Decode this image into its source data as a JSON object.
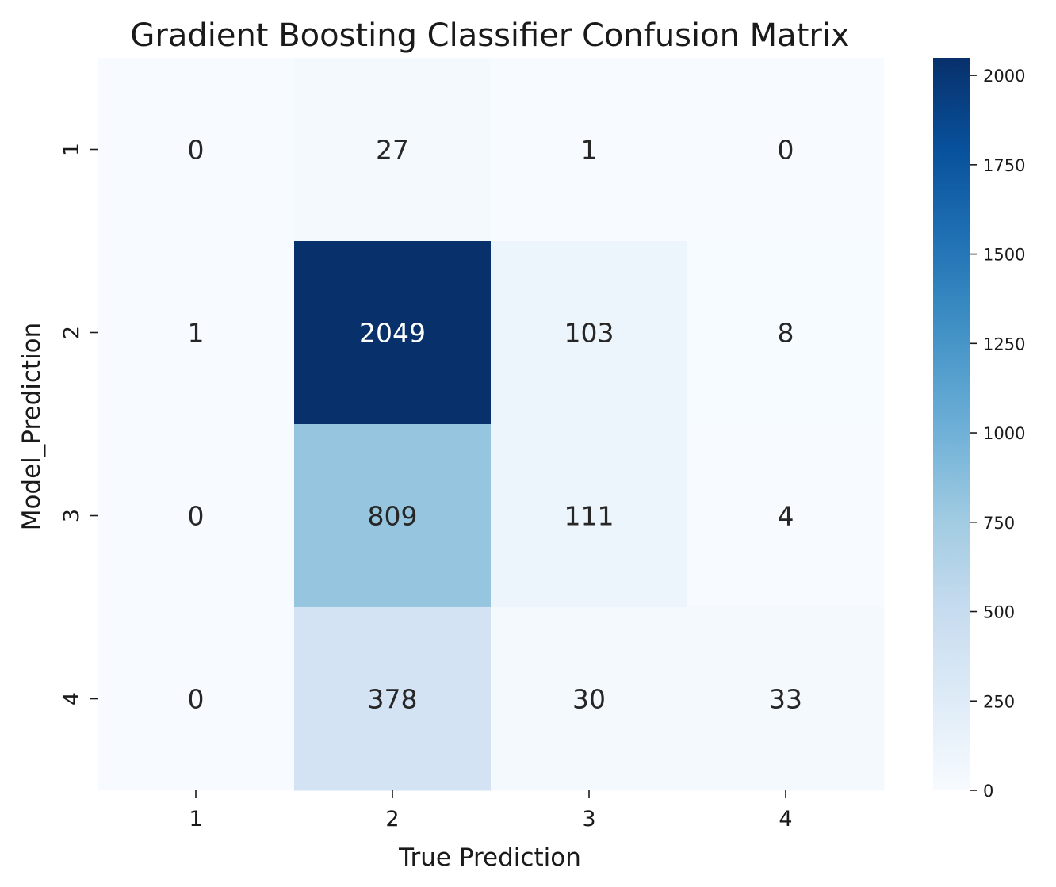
{
  "chart_data": {
    "type": "heatmap",
    "title": "Gradient Boosting Classifier Confusion Matrix",
    "xlabel": "True Prediction",
    "ylabel": "Model_Prediction",
    "x_categories": [
      "1",
      "2",
      "3",
      "4"
    ],
    "y_categories": [
      "1",
      "2",
      "3",
      "4"
    ],
    "values": [
      [
        0,
        27,
        1,
        0
      ],
      [
        1,
        2049,
        103,
        8
      ],
      [
        0,
        809,
        111,
        4
      ],
      [
        0,
        378,
        30,
        33
      ]
    ],
    "colormap": "Blues",
    "colorbar": {
      "range": [
        0,
        2049
      ],
      "ticks": [
        0,
        250,
        500,
        750,
        1000,
        1250,
        1500,
        1750,
        2000
      ]
    }
  }
}
